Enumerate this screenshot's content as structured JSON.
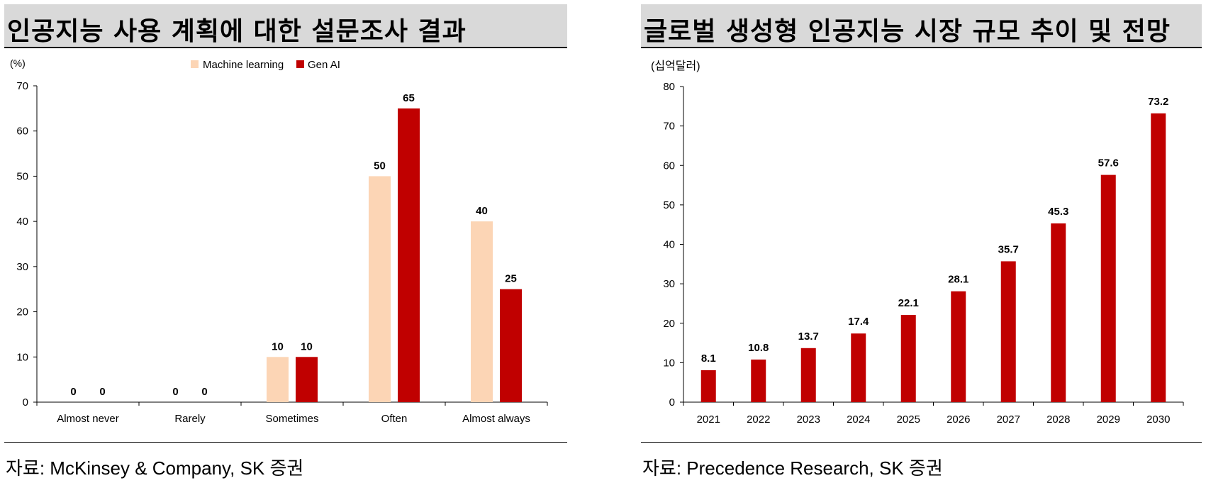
{
  "left_panel": {
    "title": "인공지능 사용 계획에 대한 설문조사 결과",
    "unit": "(%)",
    "source": "자료: McKinsey & Company, SK 증권"
  },
  "right_panel": {
    "title": "글로벌 생성형 인공지능 시장 규모 추이 및 전망",
    "unit": "(십억달러)",
    "source": "자료: Precedence Research, SK 증권"
  },
  "colors": {
    "ml": "#fcd5b5",
    "genai": "#c00000",
    "title_bg": "#d9d9d9"
  },
  "chart_data": [
    {
      "type": "bar",
      "title": "인공지능 사용 계획에 대한 설문조사 결과",
      "ylabel": "(%)",
      "categories": [
        "Almost never",
        "Rarely",
        "Sometimes",
        "Often",
        "Almost always"
      ],
      "series": [
        {
          "name": "Machine learning",
          "values": [
            0,
            0,
            10,
            50,
            40
          ],
          "color": "#fcd5b5"
        },
        {
          "name": "Gen AI",
          "values": [
            0,
            0,
            10,
            65,
            25
          ],
          "color": "#c00000"
        }
      ],
      "ylim": [
        0,
        70
      ],
      "yticks": [
        0,
        10,
        20,
        30,
        40,
        50,
        60,
        70
      ],
      "legend": "top-center",
      "grid": false
    },
    {
      "type": "bar",
      "title": "글로벌 생성형 인공지능 시장 규모 추이 및 전망",
      "ylabel": "(십억달러)",
      "categories": [
        "2021",
        "2022",
        "2023",
        "2024",
        "2025",
        "2026",
        "2027",
        "2028",
        "2029",
        "2030"
      ],
      "values": [
        8.1,
        10.8,
        13.7,
        17.4,
        22.1,
        28.1,
        35.7,
        45.3,
        57.6,
        73.2
      ],
      "value_labels": [
        "8.1",
        "10.8",
        "13.7",
        "17.4",
        "22.1",
        "28.1",
        "35.7",
        "45.3",
        "57.6",
        "73.2"
      ],
      "color": "#c00000",
      "ylim": [
        0,
        80
      ],
      "yticks": [
        0,
        10,
        20,
        30,
        40,
        50,
        60,
        70,
        80
      ],
      "grid": false
    }
  ]
}
